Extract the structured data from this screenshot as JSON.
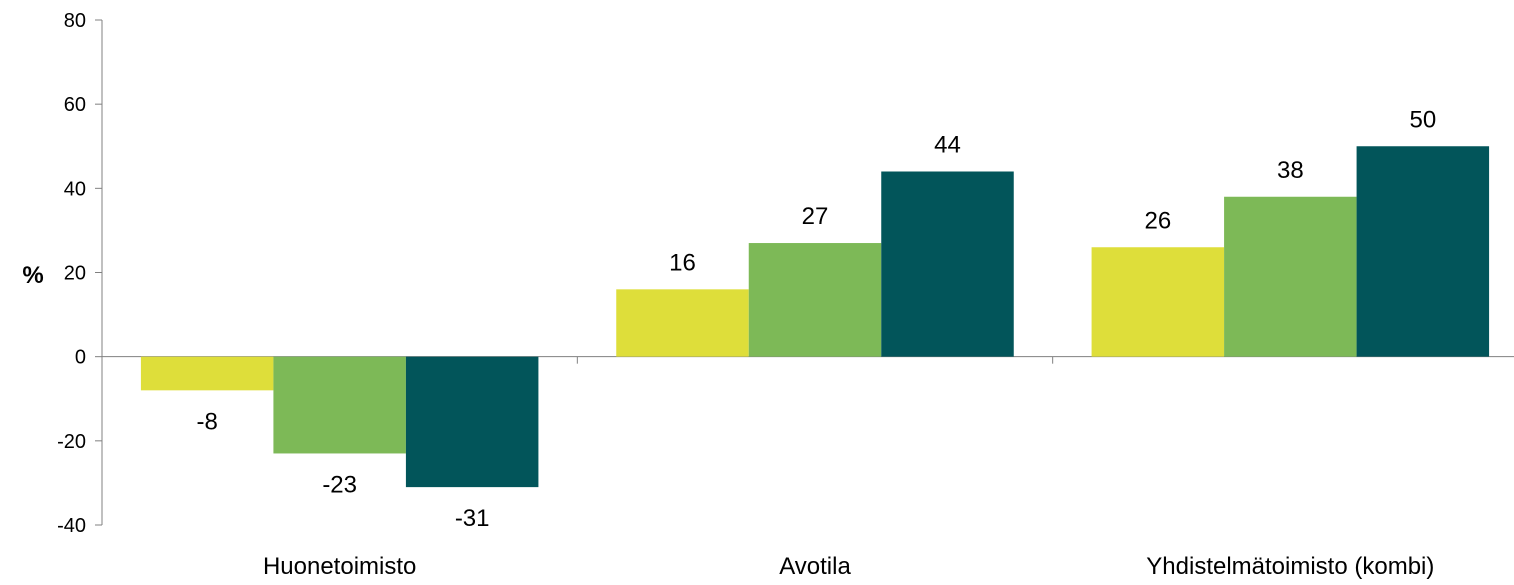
{
  "chart_data": {
    "type": "bar",
    "title": "",
    "xlabel": "",
    "ylabel": "%",
    "ylim": [
      -40,
      80
    ],
    "yticks": [
      80,
      60,
      40,
      20,
      0,
      -20,
      -40
    ],
    "grid": false,
    "legend": "none",
    "categories": [
      "Huonetoimisto",
      "Avotila",
      "Yhdistelmätoimisto (kombi)"
    ],
    "series": [
      {
        "values": [
          -8,
          16,
          26
        ],
        "color": "#dede3a"
      },
      {
        "values": [
          -23,
          27,
          38
        ],
        "color": "#7db957"
      },
      {
        "values": [
          -31,
          44,
          50
        ],
        "color": "#02555a"
      }
    ]
  }
}
